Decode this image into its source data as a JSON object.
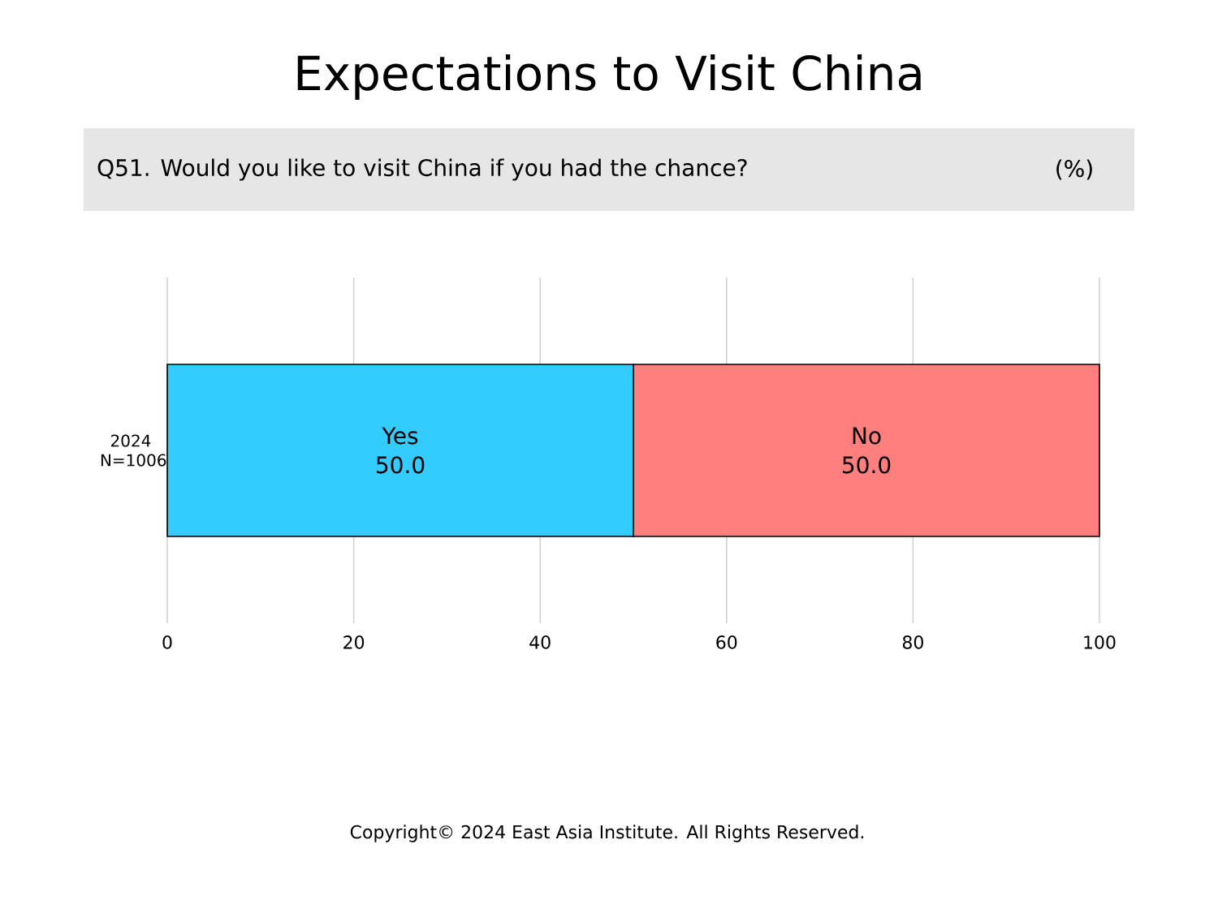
{
  "chart_data": {
    "type": "bar",
    "orientation": "horizontal",
    "stacked": true,
    "title": "Expectations to Visit China",
    "subtitle": "Q51. Would you like to visit China if you had the chance?",
    "annotations": [
      "(%)",
      "Copyright© 2024 East Asia Institute. All Rights Reserved."
    ],
    "categories": [
      "2024 N=1006"
    ],
    "series": [
      {
        "name": "Yes",
        "color": "#33ccff",
        "values": [
          50.0
        ],
        "value_labels": [
          "50.0"
        ]
      },
      {
        "name": "No",
        "color": "#ff7f7f",
        "values": [
          50.0
        ],
        "value_labels": [
          "50.0"
        ]
      }
    ],
    "xlim": [
      0,
      100
    ],
    "xticks": [
      0,
      20,
      40,
      60,
      80,
      100
    ],
    "grid": "x"
  }
}
